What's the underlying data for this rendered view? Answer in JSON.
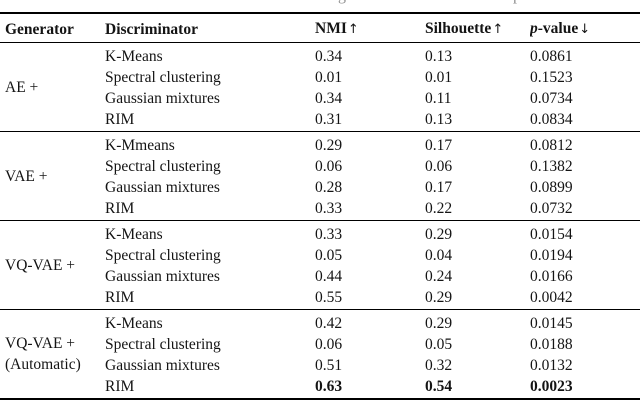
{
  "page": {
    "background": "#ffffff",
    "text_color": "#141414",
    "rule_color": "#000000",
    "caption_remnant_color": "#8f8f8f"
  },
  "caption_remnant": {
    "left_glyph": "g",
    "right_glyph": "p"
  },
  "table": {
    "columns": {
      "generator": {
        "label": "Generator"
      },
      "discriminator": {
        "label": "Discriminator"
      },
      "nmi": {
        "label": "NMI",
        "arrow": "↑"
      },
      "silhouette": {
        "label": "Silhouette",
        "arrow": "↑"
      },
      "p_value": {
        "label_italic": "p",
        "label": "-value",
        "arrow": "↓"
      }
    },
    "groups": [
      {
        "generator": "AE +",
        "rows": [
          {
            "discriminator": "K-Means",
            "nmi": "0.34",
            "silhouette": "0.13",
            "p_value": "0.0861"
          },
          {
            "discriminator": "Spectral clustering",
            "nmi": "0.01",
            "silhouette": "0.01",
            "p_value": "0.1523"
          },
          {
            "discriminator": "Gaussian mixtures",
            "nmi": "0.34",
            "silhouette": "0.11",
            "p_value": "0.0734"
          },
          {
            "discriminator": "RIM",
            "nmi": "0.31",
            "silhouette": "0.13",
            "p_value": "0.0834"
          }
        ]
      },
      {
        "generator": "VAE +",
        "rows": [
          {
            "discriminator": "K-Mmeans",
            "nmi": "0.29",
            "silhouette": "0.17",
            "p_value": "0.0812"
          },
          {
            "discriminator": "Spectral clustering",
            "nmi": "0.06",
            "silhouette": "0.06",
            "p_value": "0.1382"
          },
          {
            "discriminator": "Gaussian mixtures",
            "nmi": "0.28",
            "silhouette": "0.17",
            "p_value": "0.0899"
          },
          {
            "discriminator": "RIM",
            "nmi": "0.33",
            "silhouette": "0.22",
            "p_value": "0.0732"
          }
        ]
      },
      {
        "generator": "VQ-VAE +",
        "rows": [
          {
            "discriminator": "K-Means",
            "nmi": "0.33",
            "silhouette": "0.29",
            "p_value": "0.0154"
          },
          {
            "discriminator": "Spectral clustering",
            "nmi": "0.05",
            "silhouette": "0.04",
            "p_value": "0.0194"
          },
          {
            "discriminator": "Gaussian mixtures",
            "nmi": "0.44",
            "silhouette": "0.24",
            "p_value": "0.0166"
          },
          {
            "discriminator": "RIM",
            "nmi": "0.55",
            "silhouette": "0.29",
            "p_value": "0.0042"
          }
        ]
      },
      {
        "generator": "VQ-VAE +",
        "generator_line2": "(Automatic)",
        "rows": [
          {
            "discriminator": "K-Means",
            "nmi": "0.42",
            "silhouette": "0.29",
            "p_value": "0.0145"
          },
          {
            "discriminator": "Spectral clustering",
            "nmi": "0.06",
            "silhouette": "0.05",
            "p_value": "0.0188"
          },
          {
            "discriminator": "Gaussian mixtures",
            "nmi": "0.51",
            "silhouette": "0.32",
            "p_value": "0.0132"
          },
          {
            "discriminator": "RIM",
            "nmi": "0.63",
            "silhouette": "0.54",
            "p_value": "0.0023",
            "bold": true
          }
        ]
      }
    ]
  }
}
